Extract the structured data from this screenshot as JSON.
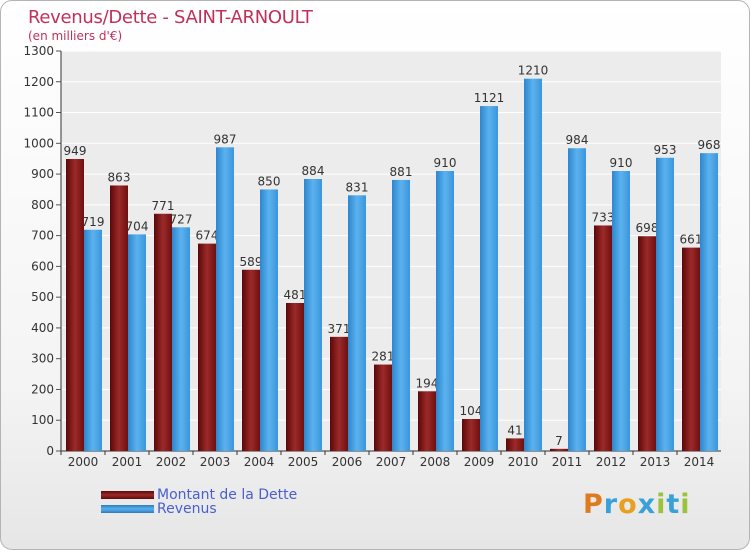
{
  "chart_data": {
    "type": "bar",
    "title": "Revenus/Dette - SAINT-ARNOULT",
    "subtitle": "(en milliers d'€)",
    "categories": [
      "2000",
      "2001",
      "2002",
      "2003",
      "2004",
      "2005",
      "2006",
      "2007",
      "2008",
      "2009",
      "2010",
      "2011",
      "2012",
      "2013",
      "2014"
    ],
    "series": [
      {
        "name": "Montant de la Dette",
        "color": "#8b1a1a",
        "values": [
          949,
          863,
          771,
          674,
          589,
          481,
          371,
          281,
          194,
          104,
          41,
          7,
          733,
          698,
          661
        ]
      },
      {
        "name": "Revenus",
        "color": "#3d9be0",
        "values": [
          719,
          704,
          727,
          987,
          850,
          884,
          831,
          881,
          910,
          1121,
          1210,
          984,
          910,
          953,
          968
        ]
      }
    ],
    "ylim": [
      0,
      1300
    ],
    "yticks": [
      0,
      100,
      200,
      300,
      400,
      500,
      600,
      700,
      800,
      900,
      1000,
      1100,
      1200,
      1300
    ],
    "grid": true,
    "legend": "bottom-left"
  },
  "logo": {
    "letters": [
      "P",
      "r",
      "o",
      "x",
      "i",
      "t",
      "i"
    ],
    "colors": [
      "#e07a1f",
      "#3aa0d8",
      "#e8a020",
      "#3aa0d8",
      "#9ac23c",
      "#3aa0d8",
      "#9ac23c"
    ]
  }
}
